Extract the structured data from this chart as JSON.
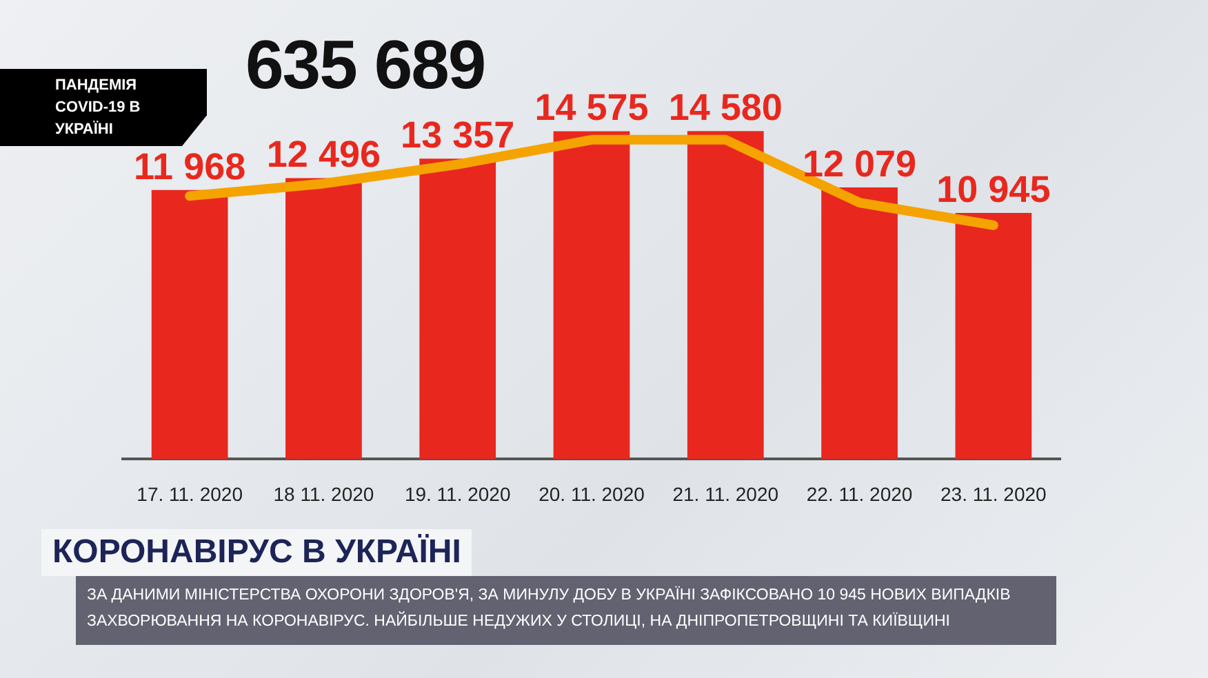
{
  "chart_data": {
    "type": "bar",
    "title": "ПАНДЕМІЯ COVID-19 В УКРАЇНІ",
    "categories": [
      "17. 11. 2020",
      "18 11. 2020",
      "19. 11. 2020",
      "20. 11. 2020",
      "21. 11. 2020",
      "22. 11. 2020",
      "23. 11. 2020"
    ],
    "series": [
      {
        "color": "#e8281e",
        "values": [
          11968,
          12496,
          13357,
          14575,
          14580,
          12079,
          10945
        ],
        "value_labels": [
          "11 968",
          "12 496",
          "13 357",
          "14 575",
          "14 580",
          "12 079",
          "10 945"
        ]
      },
      {
        "type": "line",
        "color": "#f5a300",
        "values": [
          11700,
          12250,
          13100,
          14200,
          14200,
          11400,
          10400
        ]
      }
    ],
    "grid": false,
    "legend": false,
    "marker": "none",
    "annotations": [
      "635 689",
      "КОРОНАВІРУС В УКРАЇНІ",
      "ЗА ДАНИМИ МІНІСТЕРСТВА ОХОРОНИ ЗДОРОВ'Я, ЗА МИНУЛУ ДОБУ В УКРАЇНІ ЗАФІКСОВАНО 10 945 НОВИХ ВИПАДКІВ ЗАХВОРЮВАННЯ НА КОРОНАВІРУС. НАЙБІЛЬШЕ НЕДУЖИХ У СТОЛИЦІ, НА ДНІПРОПЕТРОВЩИНІ ТА КИЇВЩИНІ"
    ]
  }
}
